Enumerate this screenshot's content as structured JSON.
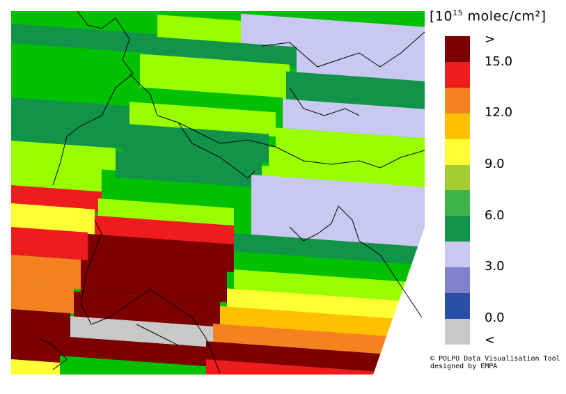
{
  "colorbar": {
    "unit_prefix": "[10",
    "unit_exp": "15",
    "unit_suffix": " molec/cm²]",
    "labels": [
      ">",
      "15.0",
      "12.0",
      "9.0",
      "6.0",
      "3.0",
      "0.0",
      "<"
    ],
    "classes": [
      {
        "color": "#7d0000",
        "range": "> 16.5"
      },
      {
        "color": "#ee1c1c",
        "range": "15.0 – 16.5"
      },
      {
        "color": "#f58220",
        "range": "13.5 – 15.0"
      },
      {
        "color": "#ffc000",
        "range": "12.0 – 13.5"
      },
      {
        "color": "#ffff33",
        "range": "10.5 – 12.0"
      },
      {
        "color": "#a6cc33",
        "range": "9.0 – 10.5"
      },
      {
        "color": "#3fb24a",
        "range": "7.5 – 9.0"
      },
      {
        "color": "#12934a",
        "range": "6.0 – 7.5"
      },
      {
        "color": "#c8c8f0",
        "range": "4.5 – 6.0"
      },
      {
        "color": "#8080cc",
        "range": "3.0 – 4.5"
      },
      {
        "color": "#2a4fa8",
        "range": "0.0 – 3.0"
      },
      {
        "color": "#c8c8c8",
        "range": "< 0.0"
      }
    ]
  },
  "map": {
    "no_data_color": "#ffffff",
    "region": "Alps / Northern Italy / Adriatic"
  },
  "credit": {
    "line1": "© POLPO Data Visualisation Tool",
    "line2": "designed by EMPA"
  }
}
